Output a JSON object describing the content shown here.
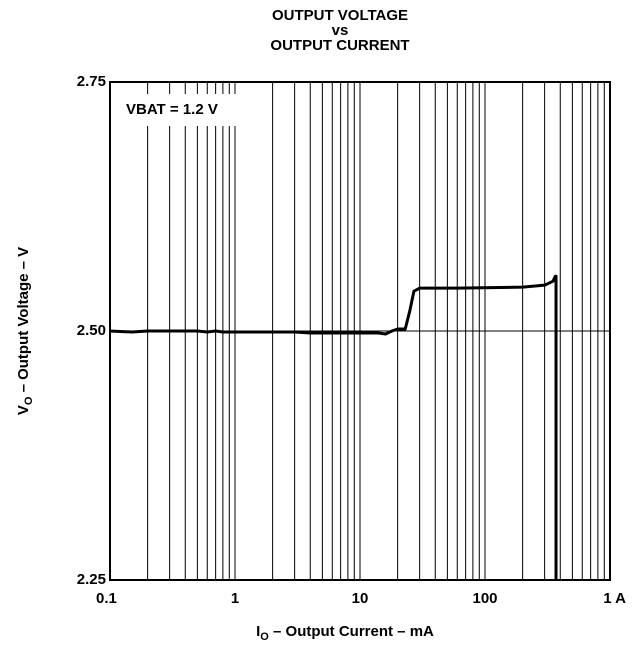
{
  "chart_data": {
    "type": "line",
    "title": [
      "OUTPUT VOLTAGE",
      "vs",
      "OUTPUT CURRENT"
    ],
    "xlabel": {
      "symbol": "I",
      "subscript": "O",
      "text": " – Output Current – mA"
    },
    "ylabel": {
      "symbol": "V",
      "subscript": "O",
      "text": " – Output Voltage – V"
    },
    "annotation": "VBAT = 1.2 V",
    "xscale": "log",
    "xlim": [
      0.1,
      1000
    ],
    "xticks": [
      0.1,
      1,
      10,
      100,
      {
        "value": 1000,
        "label": "1 A"
      }
    ],
    "ylim": [
      2.25,
      2.75
    ],
    "yticks": [
      2.25,
      {
        "value": 2.5,
        "label": "2.50"
      },
      2.75
    ],
    "grid": true,
    "minor_grid": true,
    "series": [
      {
        "name": "VBAT = 1.2 V",
        "color": "#000000",
        "x": [
          0.1,
          0.15,
          0.2,
          0.5,
          0.6,
          0.7,
          0.8,
          3,
          4,
          10,
          14,
          16,
          18,
          20,
          23,
          25,
          27,
          30,
          60,
          200,
          300,
          350,
          365,
          370,
          370
        ],
        "values": [
          2.5,
          2.499,
          2.5,
          2.5,
          2.499,
          2.5,
          2.499,
          2.499,
          2.498,
          2.498,
          2.498,
          2.497,
          2.5,
          2.502,
          2.502,
          2.52,
          2.54,
          2.543,
          2.543,
          2.544,
          2.546,
          2.55,
          2.555,
          2.555,
          2.25
        ]
      }
    ]
  }
}
